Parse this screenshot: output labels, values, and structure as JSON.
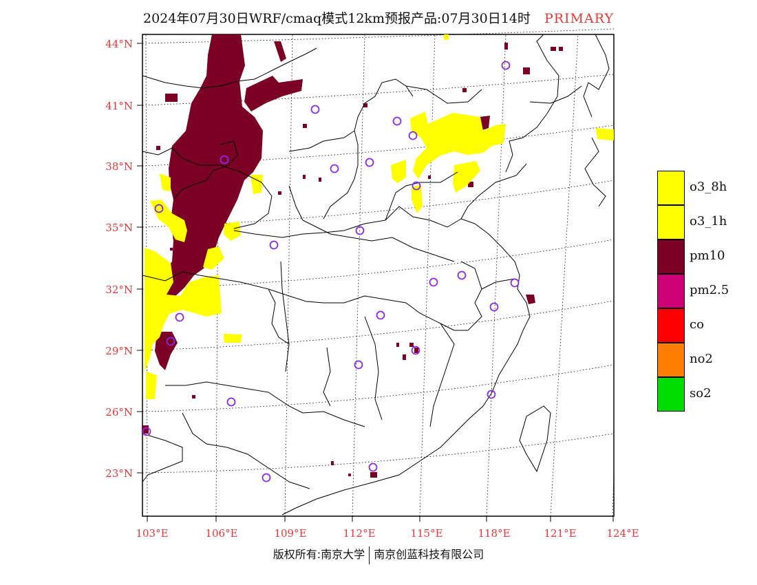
{
  "title": {
    "text": "2024年07月30日WRF/cmaq模式12km预报产品:07月30日14时",
    "tag": "PRIMARY"
  },
  "axes": {
    "lat_labels": [
      "44°N",
      "41°N",
      "38°N",
      "35°N",
      "32°N",
      "29°N",
      "26°N",
      "23°N"
    ],
    "lon_labels": [
      "103°E",
      "106°E",
      "109°E",
      "112°E",
      "115°E",
      "118°E",
      "121°E",
      "124°E"
    ],
    "label_color": "#e03a3a"
  },
  "legend": {
    "items": [
      {
        "label": "o3_8h",
        "color": "#ffff00"
      },
      {
        "label": "o3_1h",
        "color": "#ffff00"
      },
      {
        "label": "pm10",
        "color": "#7a0026"
      },
      {
        "label": "pm2.5",
        "color": "#cc0077"
      },
      {
        "label": "co",
        "color": "#ff0000"
      },
      {
        "label": "no2",
        "color": "#ff7f00"
      },
      {
        "label": "so2",
        "color": "#00dd00"
      }
    ]
  },
  "footer": {
    "left": "版权所有:南京大学",
    "right": "南京创蓝科技有限公司"
  },
  "map": {
    "station_marker_color": "#8a2be2",
    "pollutant_colors": {
      "pm10": "#7a0026",
      "o3": "#ffff00"
    }
  }
}
